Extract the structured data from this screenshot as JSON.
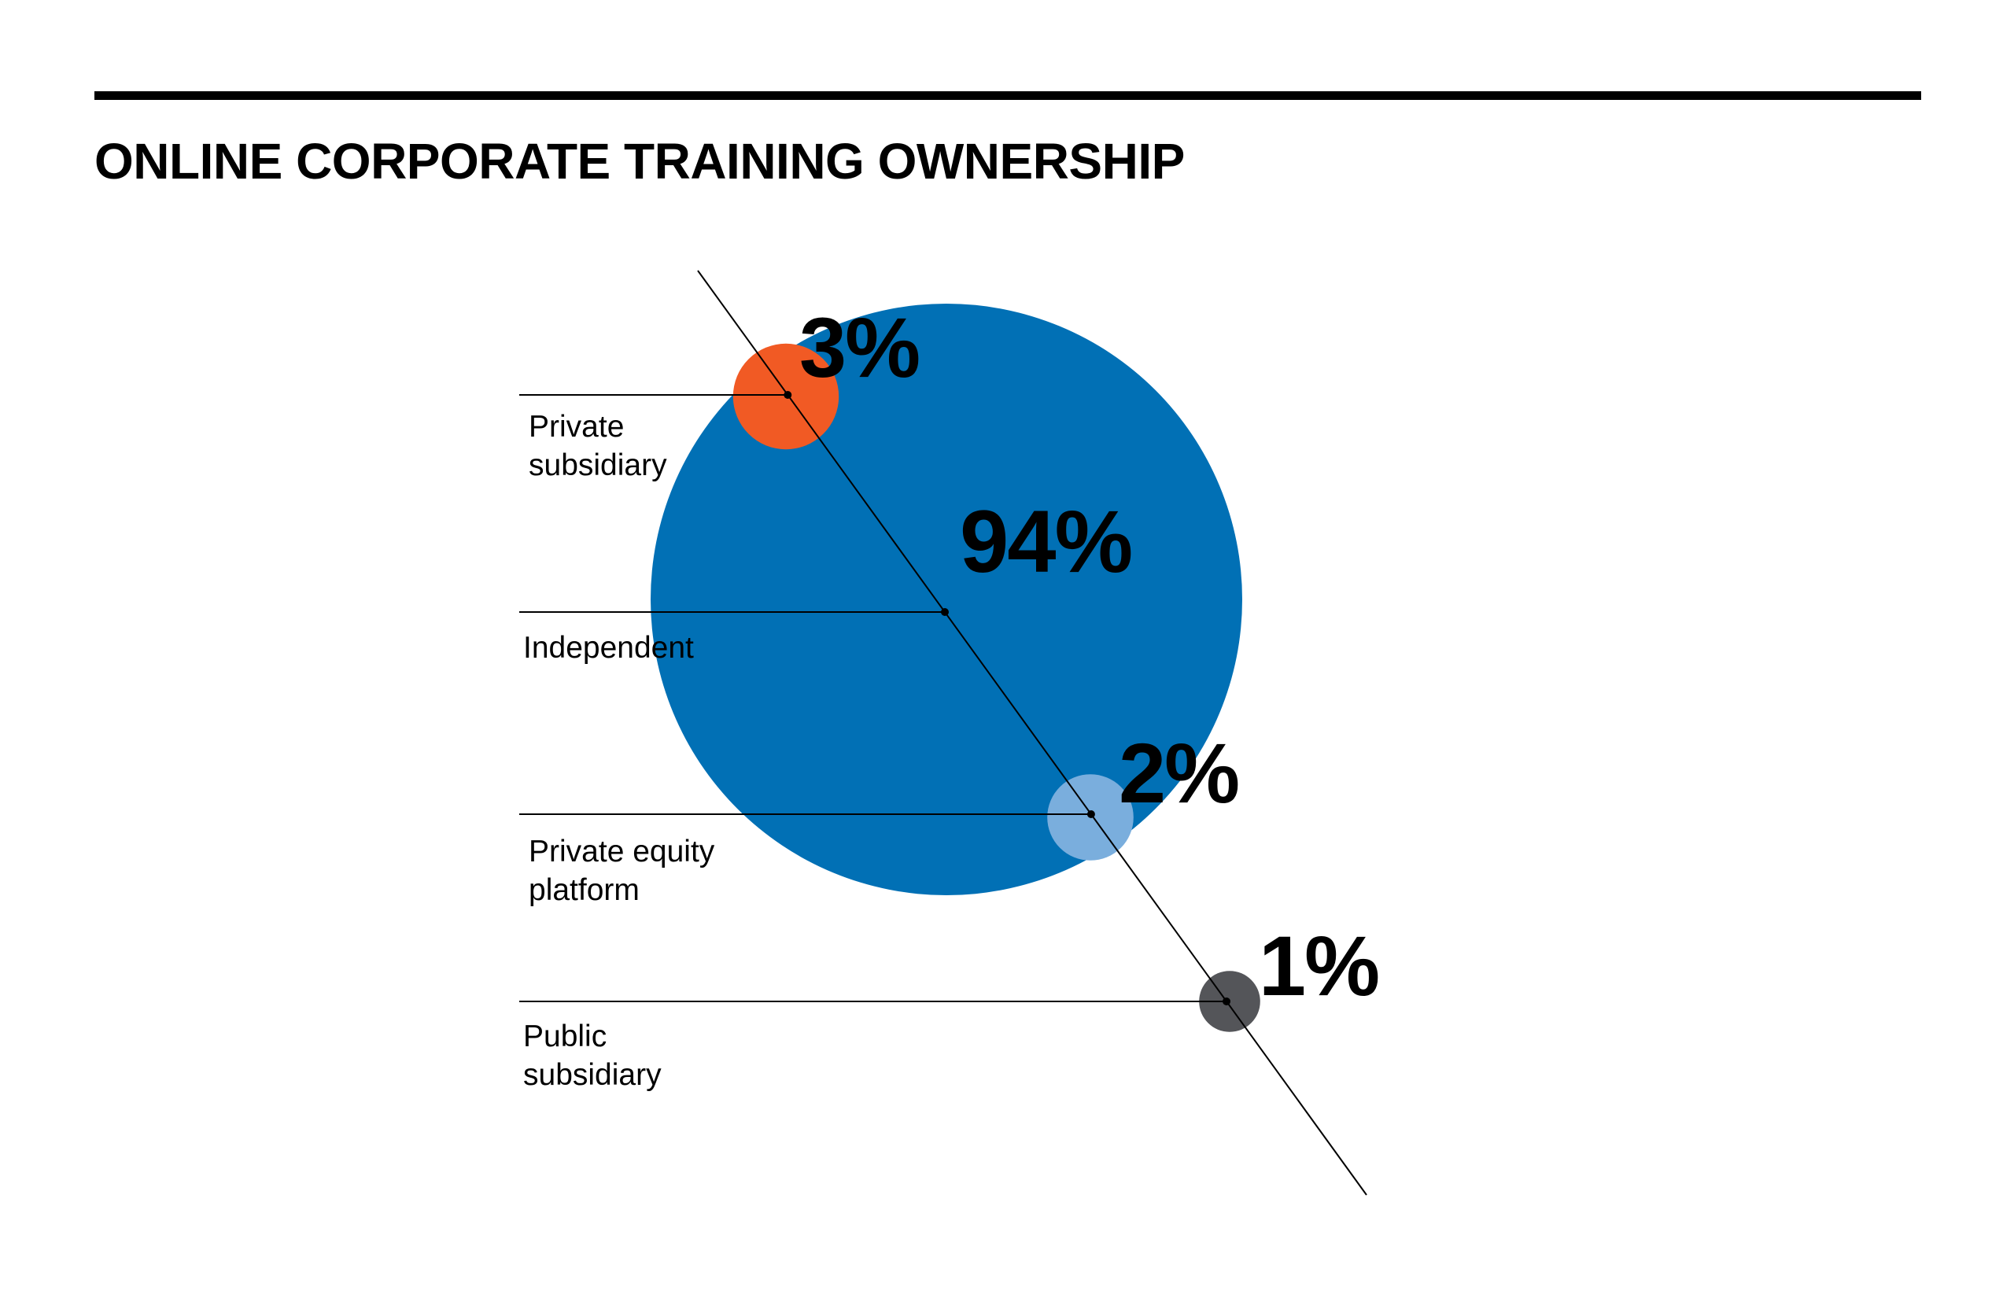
{
  "chart_data": {
    "type": "pie",
    "title": "ONLINE CORPORATE TRAINING OWNERSHIP",
    "series": [
      {
        "name": "Independent",
        "label_lines": [
          "Independent"
        ],
        "value": 94,
        "value_label": "94%",
        "color": "#0170B5"
      },
      {
        "name": "Private subsidiary",
        "label_lines": [
          "Private",
          "subsidiary"
        ],
        "value": 3,
        "value_label": "3%",
        "color": "#F15A24"
      },
      {
        "name": "Private equity platform",
        "label_lines": [
          "Private equity",
          "platform"
        ],
        "value": 2,
        "value_label": "2%",
        "color": "#7AAEDD"
      },
      {
        "name": "Public subsidiary",
        "label_lines": [
          "Public",
          "subsidiary"
        ],
        "value": 1,
        "value_label": "1%",
        "color": "#545559"
      }
    ]
  }
}
